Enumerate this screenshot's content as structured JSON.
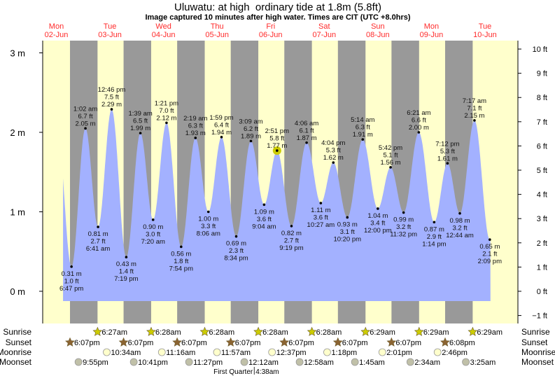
{
  "title": "Uluwatu: at high  ordinary tide at 1.8m (5.8ft)",
  "subtitle": "Image captured 10 minutes after high water. Times are CIT (UTC +8.0hrs)",
  "colors": {
    "day": "#ffffcc",
    "night": "#999999",
    "water": "#a3b1ff",
    "day_label": "#ff2a2a",
    "sun": "#cccc00",
    "sunset": "#8b6432",
    "moonrise": "#ffffcc",
    "moonset": "#c0c0a8",
    "now_marker": "#cccc00"
  },
  "days": [
    {
      "dow": "Mon",
      "date": "02-Jun"
    },
    {
      "dow": "Tue",
      "date": "03-Jun"
    },
    {
      "dow": "Wed",
      "date": "04-Jun"
    },
    {
      "dow": "Thu",
      "date": "05-Jun"
    },
    {
      "dow": "Fri",
      "date": "06-Jun"
    },
    {
      "dow": "Sat",
      "date": "07-Jun"
    },
    {
      "dow": "Sun",
      "date": "08-Jun"
    },
    {
      "dow": "Mon",
      "date": "09-Jun"
    },
    {
      "dow": "Tue",
      "date": "10-Jun"
    }
  ],
  "chart_data": {
    "type": "area",
    "title": "Uluwatu: at high  ordinary tide at 1.8m (5.8ft)",
    "y_left": {
      "unit": "m",
      "ticks": [
        "0 m",
        "1 m",
        "2 m",
        "3 m"
      ],
      "values": [
        0,
        1,
        2,
        3
      ]
    },
    "y_right": {
      "unit": "ft",
      "ticks": [
        "−1 ft",
        "0 ft",
        "1 ft",
        "2 ft",
        "3 ft",
        "4 ft",
        "5 ft",
        "6 ft",
        "7 ft",
        "8 ft",
        "9 ft",
        "10 ft"
      ],
      "values": [
        -1,
        0,
        1,
        2,
        3,
        4,
        5,
        6,
        7,
        8,
        9,
        10
      ]
    },
    "now": {
      "date": "06-Jun",
      "time": "2:51 pm"
    },
    "tides": [
      {
        "type": "low",
        "date": "02-Jun",
        "time": "6:47 pm",
        "m": "0.31 m",
        "ft": "1.0 ft",
        "v": 0.31
      },
      {
        "type": "high",
        "date": "03-Jun",
        "time": "1:02 am",
        "m": "2.05 m",
        "ft": "6.7 ft",
        "v": 2.05
      },
      {
        "type": "low",
        "date": "03-Jun",
        "time": "6:41 am",
        "m": "0.81 m",
        "ft": "2.7 ft",
        "v": 0.81
      },
      {
        "type": "high",
        "date": "03-Jun",
        "time": "12:46 pm",
        "m": "2.29 m",
        "ft": "7.5 ft",
        "v": 2.29
      },
      {
        "type": "low",
        "date": "03-Jun",
        "time": "7:19 pm",
        "m": "0.43 m",
        "ft": "1.4 ft",
        "v": 0.43
      },
      {
        "type": "high",
        "date": "04-Jun",
        "time": "1:39 am",
        "m": "1.99 m",
        "ft": "6.5 ft",
        "v": 1.99
      },
      {
        "type": "low",
        "date": "04-Jun",
        "time": "7:20 am",
        "m": "0.90 m",
        "ft": "3.0 ft",
        "v": 0.9
      },
      {
        "type": "high",
        "date": "04-Jun",
        "time": "1:21 pm",
        "m": "2.12 m",
        "ft": "7.0 ft",
        "v": 2.12
      },
      {
        "type": "low",
        "date": "04-Jun",
        "time": "7:54 pm",
        "m": "0.56 m",
        "ft": "1.8 ft",
        "v": 0.56
      },
      {
        "type": "high",
        "date": "05-Jun",
        "time": "2:19 am",
        "m": "1.93 m",
        "ft": "6.3 ft",
        "v": 1.93
      },
      {
        "type": "low",
        "date": "05-Jun",
        "time": "8:06 am",
        "m": "1.00 m",
        "ft": "3.3 ft",
        "v": 1.0
      },
      {
        "type": "high",
        "date": "05-Jun",
        "time": "1:59 pm",
        "m": "1.94 m",
        "ft": "6.4 ft",
        "v": 1.94
      },
      {
        "type": "low",
        "date": "05-Jun",
        "time": "8:34 pm",
        "m": "0.69 m",
        "ft": "2.3 ft",
        "v": 0.69
      },
      {
        "type": "high",
        "date": "06-Jun",
        "time": "3:09 am",
        "m": "1.89 m",
        "ft": "6.2 ft",
        "v": 1.89
      },
      {
        "type": "low",
        "date": "06-Jun",
        "time": "9:04 am",
        "m": "1.09 m",
        "ft": "3.6 ft",
        "v": 1.09
      },
      {
        "type": "high",
        "date": "06-Jun",
        "time": "2:51 pm",
        "m": "1.77 m",
        "ft": "5.8 ft",
        "v": 1.77
      },
      {
        "type": "low",
        "date": "06-Jun",
        "time": "9:19 pm",
        "m": "0.82 m",
        "ft": "2.7 ft",
        "v": 0.82
      },
      {
        "type": "high",
        "date": "07-Jun",
        "time": "4:06 am",
        "m": "1.87 m",
        "ft": "6.1 ft",
        "v": 1.87
      },
      {
        "type": "low",
        "date": "07-Jun",
        "time": "10:27 am",
        "m": "1.11 m",
        "ft": "3.6 ft",
        "v": 1.11
      },
      {
        "type": "high",
        "date": "07-Jun",
        "time": "4:04 pm",
        "m": "1.62 m",
        "ft": "5.3 ft",
        "v": 1.62
      },
      {
        "type": "low",
        "date": "07-Jun",
        "time": "10:20 pm",
        "m": "0.93 m",
        "ft": "3.1 ft",
        "v": 0.93
      },
      {
        "type": "high",
        "date": "08-Jun",
        "time": "5:14 am",
        "m": "1.91 m",
        "ft": "6.3 ft",
        "v": 1.91
      },
      {
        "type": "low",
        "date": "08-Jun",
        "time": "12:00 pm",
        "m": "1.04 m",
        "ft": "3.4 ft",
        "v": 1.04
      },
      {
        "type": "high",
        "date": "08-Jun",
        "time": "5:42 pm",
        "m": "1.56 m",
        "ft": "5.1 ft",
        "v": 1.56
      },
      {
        "type": "low",
        "date": "08-Jun",
        "time": "11:32 pm",
        "m": "0.99 m",
        "ft": "3.2 ft",
        "v": 0.99
      },
      {
        "type": "high",
        "date": "09-Jun",
        "time": "6:21 am",
        "m": "2.00 m",
        "ft": "6.6 ft",
        "v": 2.0
      },
      {
        "type": "low",
        "date": "09-Jun",
        "time": "1:14 pm",
        "m": "0.87 m",
        "ft": "2.9 ft",
        "v": 0.87
      },
      {
        "type": "high",
        "date": "09-Jun",
        "time": "7:12 pm",
        "m": "1.61 m",
        "ft": "5.3 ft",
        "v": 1.61
      },
      {
        "type": "low",
        "date": "10-Jun",
        "time": "12:44 am",
        "m": "0.98 m",
        "ft": "3.2 ft",
        "v": 0.98
      },
      {
        "type": "high",
        "date": "10-Jun",
        "time": "7:17 am",
        "m": "2.15 m",
        "ft": "7.1 ft",
        "v": 2.15
      },
      {
        "type": "low",
        "date": "10-Jun",
        "time": "2:09 pm",
        "m": "0.65 m",
        "ft": "2.1 ft",
        "v": 0.65
      }
    ]
  },
  "astro": {
    "rows": [
      {
        "key": "sunrise",
        "label": "Sunrise",
        "icon": "sun-icon",
        "events": [
          {
            "date": "03-Jun",
            "time": "6:27am"
          },
          {
            "date": "04-Jun",
            "time": "6:28am"
          },
          {
            "date": "05-Jun",
            "time": "6:28am"
          },
          {
            "date": "06-Jun",
            "time": "6:28am"
          },
          {
            "date": "07-Jun",
            "time": "6:28am"
          },
          {
            "date": "08-Jun",
            "time": "6:29am"
          },
          {
            "date": "09-Jun",
            "time": "6:29am"
          },
          {
            "date": "10-Jun",
            "time": "6:29am"
          }
        ]
      },
      {
        "key": "sunset",
        "label": "Sunset",
        "icon": "sunset-icon",
        "events": [
          {
            "date": "02-Jun",
            "time": "6:07pm"
          },
          {
            "date": "03-Jun",
            "time": "6:07pm"
          },
          {
            "date": "04-Jun",
            "time": "6:07pm"
          },
          {
            "date": "05-Jun",
            "time": "6:07pm"
          },
          {
            "date": "06-Jun",
            "time": "6:07pm"
          },
          {
            "date": "07-Jun",
            "time": "6:07pm"
          },
          {
            "date": "08-Jun",
            "time": "6:07pm"
          },
          {
            "date": "09-Jun",
            "time": "6:08pm"
          }
        ]
      },
      {
        "key": "moonrise",
        "label": "Moonrise",
        "icon": "moonrise-icon",
        "events": [
          {
            "date": "03-Jun",
            "time": "10:34am"
          },
          {
            "date": "04-Jun",
            "time": "11:16am"
          },
          {
            "date": "05-Jun",
            "time": "11:57am"
          },
          {
            "date": "06-Jun",
            "time": "12:37pm"
          },
          {
            "date": "07-Jun",
            "time": "1:18pm"
          },
          {
            "date": "08-Jun",
            "time": "2:01pm"
          },
          {
            "date": "09-Jun",
            "time": "2:46pm"
          }
        ]
      },
      {
        "key": "moonset",
        "label": "Moonset",
        "icon": "moonset-icon",
        "events": [
          {
            "date": "02-Jun",
            "time": "9:55pm"
          },
          {
            "date": "03-Jun",
            "time": "10:41pm"
          },
          {
            "date": "04-Jun",
            "time": "11:27pm"
          },
          {
            "date": "06-Jun",
            "time": "12:12am"
          },
          {
            "date": "07-Jun",
            "time": "12:58am"
          },
          {
            "date": "08-Jun",
            "time": "1:45am"
          },
          {
            "date": "09-Jun",
            "time": "2:34am"
          },
          {
            "date": "10-Jun",
            "time": "3:25am"
          }
        ]
      }
    ],
    "moon_phase": {
      "label": "First Quarter",
      "date": "06-Jun",
      "time": "4:38am"
    }
  }
}
